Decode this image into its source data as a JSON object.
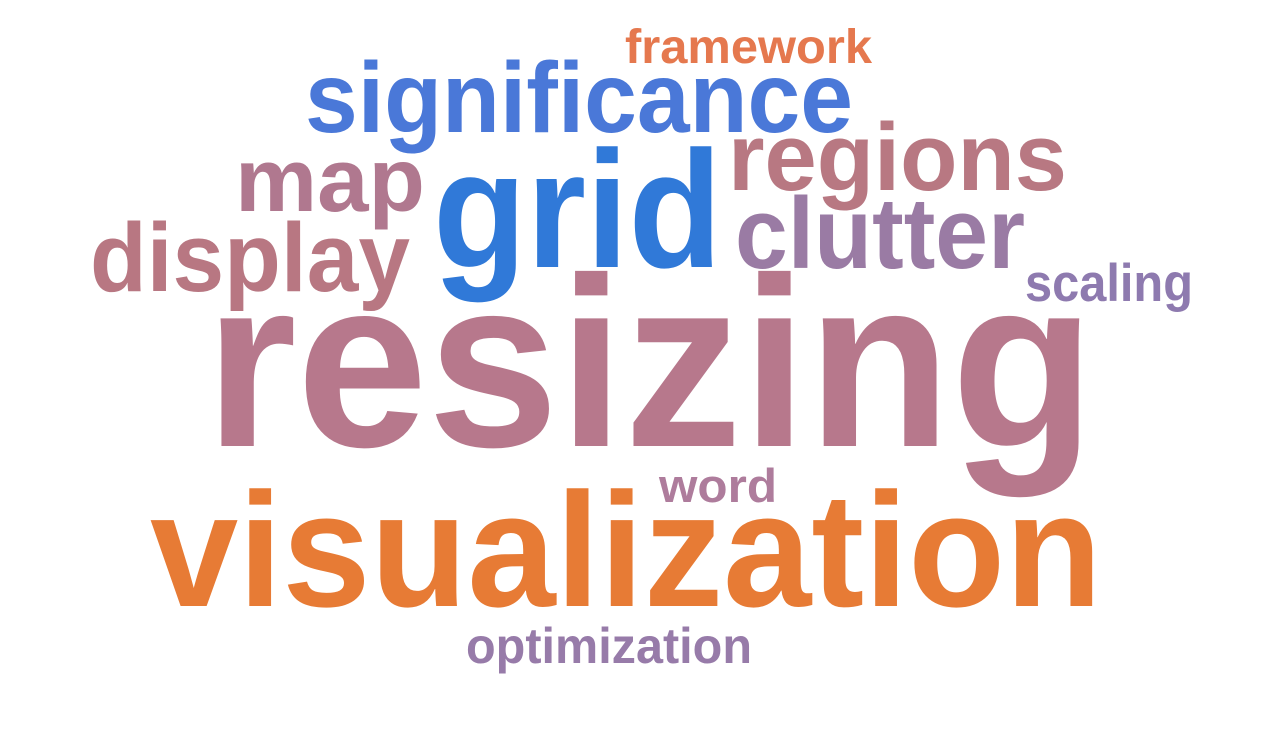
{
  "word_cloud": {
    "words": [
      {
        "key": "resizing",
        "text": "resizing",
        "color": "#b7788c"
      },
      {
        "key": "visualization",
        "text": "visualization",
        "color": "#e77b35"
      },
      {
        "key": "grid",
        "text": "grid",
        "color": "#3079d8"
      },
      {
        "key": "significance",
        "text": "significance",
        "color": "#4a78d8"
      },
      {
        "key": "regions",
        "text": "regions",
        "color": "#b87882"
      },
      {
        "key": "map",
        "text": "map",
        "color": "#b0788f"
      },
      {
        "key": "display",
        "text": "display",
        "color": "#b87782"
      },
      {
        "key": "clutter",
        "text": "clutter",
        "color": "#9a7ba4"
      },
      {
        "key": "framework",
        "text": "framework",
        "color": "#e5784e"
      },
      {
        "key": "scaling",
        "text": "scaling",
        "color": "#8e7aaf"
      },
      {
        "key": "word",
        "text": "word",
        "color": "#ae7c9c"
      },
      {
        "key": "optimization",
        "text": "optimization",
        "color": "#977ba9"
      }
    ]
  }
}
